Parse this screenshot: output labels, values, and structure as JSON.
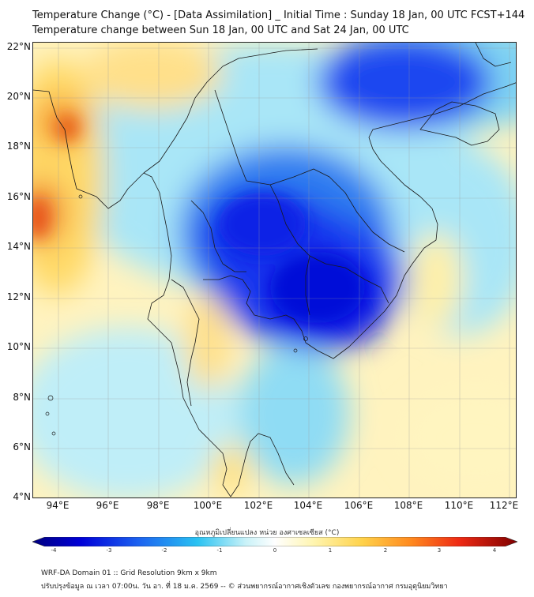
{
  "title": {
    "line1": "Temperature Change (°C) - [Data Assimilation] _ Initial Time : Sunday 18 Jan, 00 UTC FCST+144",
    "line2": "Temperature change between Sun 18 Jan, 00 UTC and Sat 24 Jan, 00 UTC"
  },
  "axes": {
    "lat_labels": [
      "22°N",
      "20°N",
      "18°N",
      "16°N",
      "14°N",
      "12°N",
      "10°N",
      "8°N",
      "6°N",
      "4°N"
    ],
    "lon_labels": [
      "94°E",
      "96°E",
      "98°E",
      "100°E",
      "102°E",
      "104°E",
      "106°E",
      "108°E",
      "110°E",
      "112°E"
    ],
    "lat_range": [
      4,
      22.2
    ],
    "lon_range": [
      93,
      112.3
    ]
  },
  "colorbar": {
    "label": "อุณหภูมิเปลี่ยนแปลง หน่วย องศาเซลเซียส (°C)",
    "min": -4,
    "max": 4,
    "ticks": [
      "-4",
      "-3",
      "-2",
      "-1",
      "0",
      "1",
      "2",
      "3",
      "4"
    ],
    "colors": [
      "#00007f",
      "#0000d8",
      "#1c63f0",
      "#29c2f2",
      "#c9f2f8",
      "#ffffff",
      "#fff5b0",
      "#ffd24a",
      "#ff8a1f",
      "#ee2a14",
      "#7f0000"
    ]
  },
  "footer": {
    "line1": "WRF-DA Domain 01 :: Grid Resolution 9km x 9km",
    "line2": "ปรับปรุงข้อมูล ณ เวลา 07:00น. วัน อา. ที่ 18 ม.ค. 2569 -- © ส่วนพยากรณ์อากาศเชิงตัวเลข กองพยากรณ์อากาศ กรมอุตุนิยมวิทยา"
  }
}
